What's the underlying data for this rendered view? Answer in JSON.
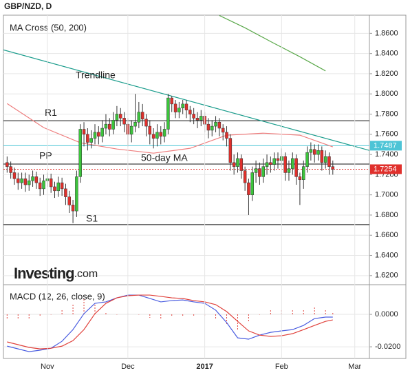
{
  "header": {
    "title": "GBP/NZD, D"
  },
  "watermark": {
    "brand": "Investing",
    "suffix": ".com"
  },
  "chart_data": [
    {
      "type": "candlestick",
      "title": "MA Cross (50, 200)",
      "categories": [
        null,
        null,
        null,
        null,
        null,
        null,
        null,
        null,
        null,
        null,
        null,
        null,
        null,
        null,
        null,
        null,
        null,
        null,
        null,
        null,
        null,
        null,
        null,
        null,
        null,
        null,
        null,
        null,
        null,
        null,
        null,
        null,
        null,
        null,
        null,
        null,
        null,
        null,
        null,
        null,
        null,
        null,
        null,
        null,
        null,
        null,
        null,
        null,
        null,
        null,
        null,
        null,
        null,
        null,
        null,
        null,
        null,
        null,
        null,
        null,
        null,
        null,
        null,
        null,
        null,
        null,
        null,
        null,
        null,
        null,
        null,
        null,
        null,
        null,
        null,
        null,
        null,
        null,
        null,
        null,
        null,
        null,
        null,
        null,
        null,
        null,
        null,
        null,
        null,
        null
      ],
      "open": [
        1.732,
        1.728,
        1.722,
        1.716,
        1.712,
        1.716,
        1.71,
        1.714,
        1.718,
        1.712,
        1.706,
        1.714,
        1.716,
        1.708,
        1.704,
        1.712,
        1.706,
        1.698,
        1.69,
        1.684,
        1.718,
        1.765,
        1.76,
        1.752,
        1.756,
        1.762,
        1.758,
        1.766,
        1.77,
        1.765,
        1.774,
        1.78,
        1.776,
        1.77,
        1.76,
        1.768,
        1.772,
        1.782,
        1.775,
        1.768,
        1.76,
        1.756,
        1.762,
        1.758,
        1.765,
        1.796,
        1.79,
        1.782,
        1.786,
        1.79,
        1.784,
        1.78,
        1.776,
        1.774,
        1.778,
        1.77,
        1.764,
        1.768,
        1.772,
        1.766,
        1.762,
        1.756,
        1.732,
        1.728,
        1.736,
        1.724,
        1.712,
        1.7,
        1.722,
        1.726,
        1.718,
        1.728,
        1.732,
        1.73,
        1.736,
        1.734,
        1.738,
        1.722,
        1.726,
        1.736,
        1.718,
        1.715,
        1.728,
        1.742,
        1.745,
        1.74,
        1.744,
        1.732,
        1.738,
        1.728
      ],
      "high": [
        1.738,
        1.733,
        1.727,
        1.722,
        1.722,
        1.722,
        1.72,
        1.724,
        1.723,
        1.717,
        1.72,
        1.722,
        1.721,
        1.713,
        1.718,
        1.717,
        1.711,
        1.704,
        1.695,
        1.724,
        1.77,
        1.772,
        1.766,
        1.764,
        1.77,
        1.768,
        1.774,
        1.78,
        1.776,
        1.782,
        1.788,
        1.786,
        1.782,
        1.776,
        1.774,
        1.8,
        1.792,
        1.79,
        1.78,
        1.774,
        1.766,
        1.77,
        1.768,
        1.772,
        1.8,
        1.798,
        1.794,
        1.792,
        1.794,
        1.794,
        1.788,
        1.786,
        1.782,
        1.784,
        1.782,
        1.776,
        1.774,
        1.778,
        1.776,
        1.77,
        1.768,
        1.76,
        1.74,
        1.742,
        1.74,
        1.728,
        1.716,
        1.728,
        1.734,
        1.732,
        1.736,
        1.74,
        1.738,
        1.742,
        1.742,
        1.746,
        1.742,
        1.734,
        1.742,
        1.74,
        1.722,
        1.734,
        1.748,
        1.752,
        1.75,
        1.75,
        1.748,
        1.744,
        1.742,
        1.734
      ],
      "low": [
        1.722,
        1.716,
        1.71,
        1.705,
        1.706,
        1.703,
        1.704,
        1.708,
        1.706,
        1.699,
        1.7,
        1.708,
        1.702,
        1.697,
        1.698,
        1.699,
        1.69,
        1.682,
        1.672,
        1.678,
        1.712,
        1.748,
        1.744,
        1.746,
        1.75,
        1.75,
        1.752,
        1.76,
        1.758,
        1.76,
        1.768,
        1.768,
        1.762,
        1.748,
        1.752,
        1.762,
        1.766,
        1.768,
        1.758,
        1.75,
        1.746,
        1.748,
        1.75,
        1.752,
        1.76,
        1.782,
        1.776,
        1.776,
        1.78,
        1.776,
        1.772,
        1.77,
        1.766,
        1.768,
        1.762,
        1.756,
        1.758,
        1.762,
        1.758,
        1.754,
        1.748,
        1.724,
        1.72,
        1.722,
        1.716,
        1.704,
        1.68,
        1.694,
        1.712,
        1.71,
        1.712,
        1.72,
        1.722,
        1.724,
        1.726,
        1.728,
        1.714,
        1.714,
        1.72,
        1.71,
        1.69,
        1.706,
        1.722,
        1.734,
        1.732,
        1.734,
        1.724,
        1.726,
        1.72,
        1.72
      ],
      "close": [
        1.728,
        1.722,
        1.716,
        1.712,
        1.716,
        1.71,
        1.714,
        1.718,
        1.712,
        1.706,
        1.714,
        1.716,
        1.708,
        1.704,
        1.712,
        1.706,
        1.698,
        1.69,
        1.684,
        1.718,
        1.765,
        1.76,
        1.752,
        1.756,
        1.762,
        1.758,
        1.766,
        1.77,
        1.765,
        1.774,
        1.78,
        1.776,
        1.77,
        1.76,
        1.768,
        1.772,
        1.782,
        1.775,
        1.768,
        1.76,
        1.756,
        1.762,
        1.758,
        1.765,
        1.796,
        1.79,
        1.782,
        1.786,
        1.79,
        1.784,
        1.78,
        1.776,
        1.774,
        1.778,
        1.77,
        1.764,
        1.768,
        1.772,
        1.766,
        1.762,
        1.756,
        1.732,
        1.728,
        1.736,
        1.724,
        1.712,
        1.7,
        1.722,
        1.726,
        1.718,
        1.728,
        1.732,
        1.73,
        1.736,
        1.734,
        1.738,
        1.722,
        1.726,
        1.736,
        1.718,
        1.715,
        1.728,
        1.742,
        1.745,
        1.74,
        1.744,
        1.732,
        1.738,
        1.728,
        1.7254
      ],
      "up_color": "#3cc43c",
      "down_color": "#e0302c",
      "xlim": [
        -1,
        99
      ],
      "ylim": [
        1.611,
        1.878
      ],
      "yticks": [
        {
          "value": 1.62,
          "label": "1.6200"
        },
        {
          "value": 1.64,
          "label": "1.6400"
        },
        {
          "value": 1.66,
          "label": "1.6600"
        },
        {
          "value": 1.68,
          "label": "1.6800"
        },
        {
          "value": 1.7,
          "label": "1.7000"
        },
        {
          "value": 1.72,
          "label": "1.7200"
        },
        {
          "value": 1.74,
          "label": "1.7400"
        },
        {
          "value": 1.76,
          "label": "1.7600"
        },
        {
          "value": 1.78,
          "label": "1.7800"
        },
        {
          "value": 1.8,
          "label": "1.8000"
        },
        {
          "value": 1.82,
          "label": "1.8200"
        },
        {
          "value": 1.84,
          "label": "1.8400"
        },
        {
          "value": 1.86,
          "label": "1.8600"
        }
      ],
      "grid": true,
      "lines": [
        {
          "name": "Trendline",
          "color": "#1a9c8c",
          "x": [
            -1,
            99
          ],
          "values": [
            1.8436,
            1.744
          ]
        },
        {
          "name": "50-day MA",
          "color": "#ee7d7d",
          "x": [
            0,
            10,
            20,
            30,
            40,
            50,
            60,
            70,
            80,
            89
          ],
          "values": [
            1.7904,
            1.7666,
            1.7516,
            1.7454,
            1.7413,
            1.7461,
            1.7591,
            1.7611,
            1.7591,
            1.7475
          ]
        },
        {
          "color": "#5aa84a",
          "x": [
            58,
            65,
            72,
            80,
            87
          ],
          "values": [
            1.8777,
            1.8655,
            1.8519,
            1.8368,
            1.8228
          ]
        }
      ],
      "levels": [
        {
          "name": "R1",
          "value": 1.7734
        },
        {
          "name": "PP",
          "value": 1.7305
        },
        {
          "name": "S1",
          "value": 1.6705
        }
      ],
      "price_markers": [
        {
          "value": 1.7487,
          "color": "#4dc4d6"
        },
        {
          "value": 1.7254,
          "color": "#e0302c"
        }
      ]
    },
    {
      "type": "line",
      "title": "MACD (12, 26, close, 9)",
      "x": [
        0,
        3,
        6,
        9,
        12,
        15,
        18,
        21,
        24,
        27,
        30,
        33,
        36,
        39,
        42,
        45,
        48,
        51,
        54,
        57,
        60,
        63,
        66,
        69,
        72,
        75,
        78,
        81,
        84,
        87,
        89
      ],
      "series": [
        {
          "color": "#4a5de0",
          "values": [
            -0.0196,
            -0.0213,
            -0.023,
            -0.0221,
            -0.0209,
            -0.0166,
            -0.0094,
            0.0004,
            0.0068,
            0.0077,
            0.0102,
            0.0119,
            0.0119,
            0.0098,
            0.0077,
            0.0085,
            0.0089,
            0.0077,
            0.0068,
            0.0026,
            -0.0051,
            -0.0145,
            -0.0153,
            -0.0128,
            -0.0111,
            -0.0102,
            -0.0094,
            -0.0068,
            -0.0026,
            -0.0017,
            -0.0017
          ]
        },
        {
          "color": "#e0403a",
          "values": [
            -0.017,
            -0.0187,
            -0.0204,
            -0.0213,
            -0.0209,
            -0.0196,
            -0.0162,
            -0.0094,
            0.0004,
            0.0068,
            0.0102,
            0.0115,
            0.0119,
            0.0119,
            0.0111,
            0.0102,
            0.0098,
            0.0085,
            0.0077,
            0.006,
            0.0017,
            -0.0043,
            -0.0102,
            -0.0128,
            -0.0136,
            -0.0132,
            -0.0119,
            -0.0094,
            -0.0068,
            -0.0043,
            -0.0034
          ]
        }
      ],
      "histogram": {
        "color": "#e0403a",
        "values": [
          -0.0026,
          -0.0026,
          -0.0026,
          -0.0008,
          0.0,
          0.003,
          0.0068,
          0.0098,
          0.0064,
          0.0009,
          0.0,
          0.0004,
          0.0,
          -0.0021,
          -0.0034,
          -0.0017,
          -0.0009,
          -0.0008,
          -0.0009,
          -0.0034,
          -0.0068,
          -0.0102,
          -0.0051,
          0.0,
          0.0025,
          0.003,
          0.0025,
          0.0026,
          0.0042,
          0.0026,
          0.0017
        ]
      },
      "xlim": [
        -1,
        99
      ],
      "ylim": [
        -0.0272,
        0.0183
      ],
      "yticks": [
        {
          "value": -0.02,
          "label": "-0.0200"
        },
        {
          "value": 0,
          "label": "0.0000"
        }
      ],
      "xticks": [
        {
          "value": 11,
          "label": "Nov"
        },
        {
          "value": 33,
          "label": "Dec"
        },
        {
          "value": 54,
          "label": "2017"
        },
        {
          "value": 75,
          "label": "Feb"
        },
        {
          "value": 95,
          "label": "Mar"
        }
      ],
      "grid": true
    }
  ]
}
